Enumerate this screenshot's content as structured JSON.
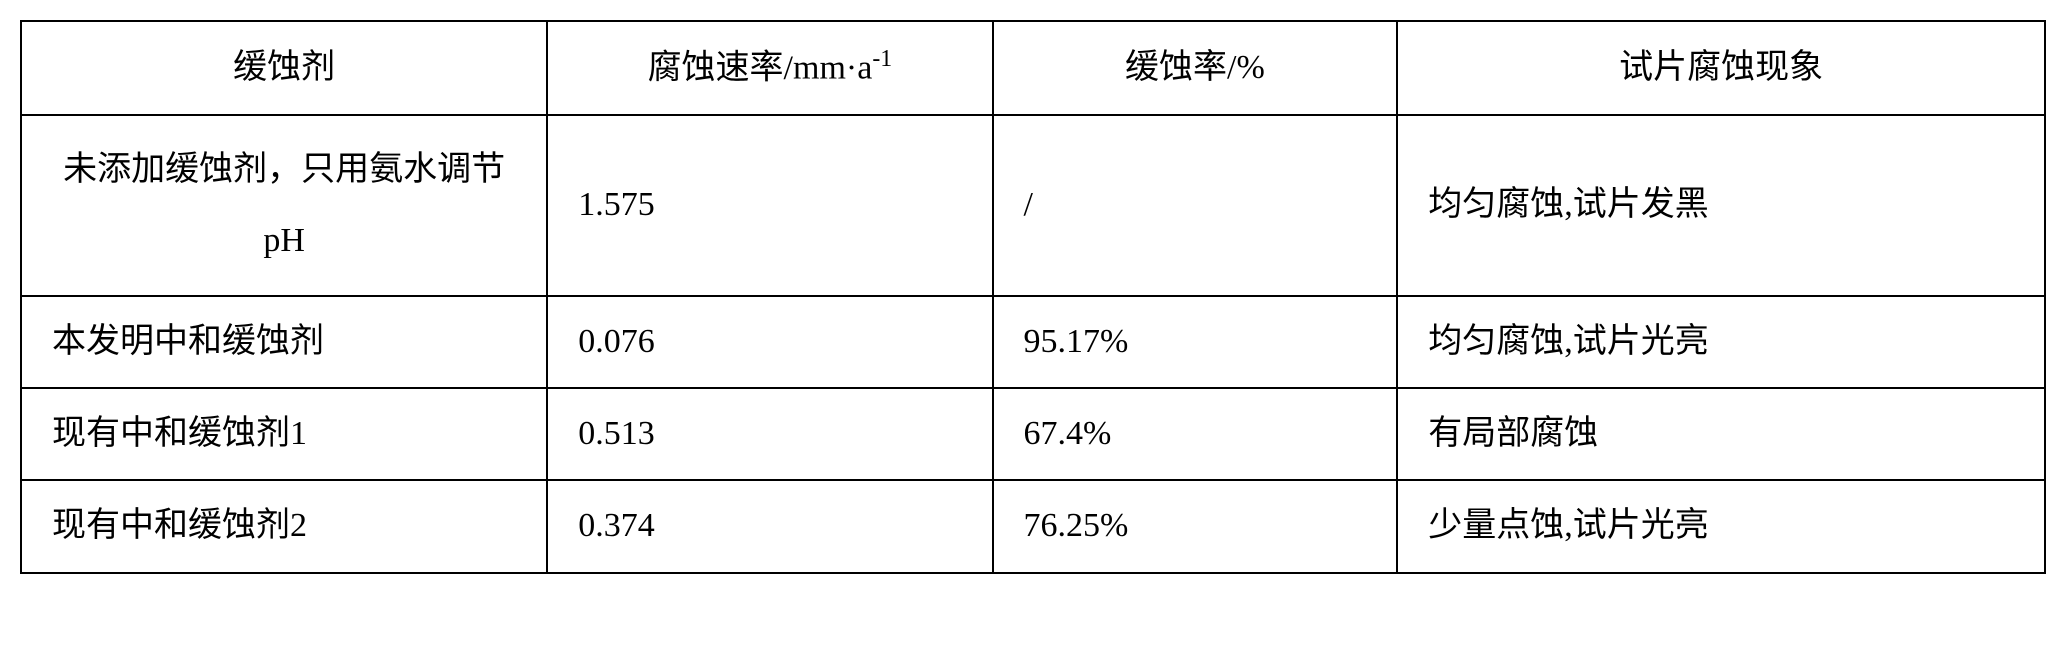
{
  "table": {
    "type": "table",
    "font_family": "SimSun",
    "base_font_size": 34,
    "border_color": "#000000",
    "border_width": 2,
    "background_color": "#ffffff",
    "text_color": "#000000",
    "columns": [
      {
        "label": "缓蚀剂",
        "width_pct": 26,
        "align": "center"
      },
      {
        "label": "腐蚀速率/mm·a",
        "superscript": "-1",
        "width_pct": 22,
        "align": "center"
      },
      {
        "label": "缓蚀率/%",
        "width_pct": 20,
        "align": "center"
      },
      {
        "label": "试片腐蚀现象",
        "width_pct": 32,
        "align": "center"
      }
    ],
    "rows": [
      {
        "col0": "未添加缓蚀剂，只用氨水调节pH",
        "col1": "1.575",
        "col2": "/",
        "col3": "均匀腐蚀,试片发黑",
        "col0_align": "center",
        "multiline": true
      },
      {
        "col0": "本发明中和缓蚀剂",
        "col1": "0.076",
        "col2": "95.17%",
        "col3": "均匀腐蚀,试片光亮"
      },
      {
        "col0": "现有中和缓蚀剂1",
        "col1": "0.513",
        "col2": "67.4%",
        "col3": "有局部腐蚀"
      },
      {
        "col0": "现有中和缓蚀剂2",
        "col1": "0.374",
        "col2": "76.25%",
        "col3": "少量点蚀,试片光亮"
      }
    ]
  }
}
